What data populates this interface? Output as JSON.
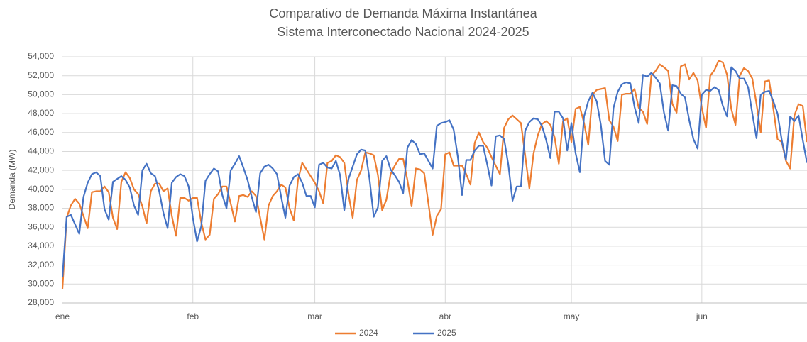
{
  "chart_data": {
    "type": "line",
    "title": "Comparativo de Demanda Máxima Instantánea",
    "subtitle": "Sistema Interconectado Nacional 2024-2025",
    "y_label": "Demanda (MW)",
    "categories": [
      "ene",
      null,
      null,
      null,
      null,
      null,
      null,
      null,
      null,
      null,
      null,
      null,
      null,
      null,
      null,
      null,
      null,
      null,
      null,
      null,
      null,
      null,
      null,
      null,
      null,
      null,
      null,
      null,
      null,
      null,
      null,
      "feb",
      null,
      null,
      null,
      null,
      null,
      null,
      null,
      null,
      null,
      null,
      null,
      null,
      null,
      null,
      null,
      null,
      null,
      null,
      null,
      null,
      null,
      null,
      null,
      null,
      null,
      null,
      null,
      null,
      "mar",
      null,
      null,
      null,
      null,
      null,
      null,
      null,
      null,
      null,
      null,
      null,
      null,
      null,
      null,
      null,
      null,
      null,
      null,
      null,
      null,
      null,
      null,
      null,
      null,
      null,
      null,
      null,
      null,
      null,
      null,
      "abr",
      null,
      null,
      null,
      null,
      null,
      null,
      null,
      null,
      null,
      null,
      null,
      null,
      null,
      null,
      null,
      null,
      null,
      null,
      null,
      null,
      null,
      null,
      null,
      null,
      null,
      null,
      null,
      null,
      null,
      "may",
      null,
      null,
      null,
      null,
      null,
      null,
      null,
      null,
      null,
      null,
      null,
      null,
      null,
      null,
      null,
      null,
      null,
      null,
      null,
      null,
      null,
      null,
      null,
      null,
      null,
      null,
      null,
      null,
      null,
      null,
      "jun",
      null,
      null,
      null,
      null,
      null,
      null,
      null,
      null,
      null,
      null,
      null,
      null,
      null,
      null,
      null,
      null,
      null,
      null,
      null,
      null,
      null,
      null,
      null,
      null,
      null
    ],
    "series": [
      {
        "name": "2024",
        "color": "#ed7d31",
        "values": [
          29500,
          37000,
          38300,
          39000,
          38500,
          37200,
          35900,
          39700,
          39800,
          39800,
          40300,
          39700,
          37000,
          35800,
          40800,
          41800,
          41200,
          40000,
          39500,
          38200,
          36400,
          39800,
          40600,
          40600,
          39800,
          40100,
          37200,
          35100,
          39100,
          39100,
          38800,
          39100,
          39100,
          36500,
          34700,
          35200,
          39000,
          39500,
          40300,
          40300,
          38500,
          36600,
          39300,
          39400,
          39200,
          39800,
          39300,
          37000,
          34700,
          38300,
          39300,
          39800,
          40500,
          40200,
          38000,
          36700,
          41000,
          42800,
          42100,
          41400,
          40700,
          39800,
          38500,
          42800,
          43000,
          43600,
          43400,
          42800,
          39500,
          37000,
          41000,
          42000,
          43900,
          43800,
          43600,
          41500,
          37800,
          38900,
          41600,
          42500,
          43200,
          43200,
          41000,
          38200,
          42200,
          42100,
          41700,
          38500,
          35200,
          37200,
          37900,
          43700,
          43900,
          42500,
          42500,
          42500,
          41600,
          40500,
          44900,
          46000,
          45000,
          44400,
          43400,
          42500,
          41600,
          46500,
          47400,
          47800,
          47400,
          47000,
          43600,
          40100,
          43800,
          45700,
          46900,
          47200,
          46800,
          45500,
          42700,
          47200,
          47500,
          45000,
          48500,
          48700,
          47000,
          44700,
          50000,
          50500,
          50600,
          50700,
          47300,
          46600,
          45100,
          50000,
          50100,
          50100,
          50600,
          48600,
          48200,
          46900,
          52000,
          52500,
          53200,
          52900,
          52500,
          49000,
          48100,
          53000,
          53200,
          51600,
          52300,
          51500,
          48600,
          46500,
          52000,
          52600,
          53600,
          53400,
          52100,
          48500,
          46800,
          52000,
          52800,
          52500,
          51700,
          49000,
          46000,
          51400,
          51500,
          48500,
          45300,
          45000,
          43000,
          42200,
          47800,
          49000,
          48800,
          45000
        ]
      },
      {
        "name": "2025",
        "color": "#4472c4",
        "values": [
          30700,
          37100,
          37300,
          36300,
          35300,
          39200,
          40700,
          41600,
          41800,
          41400,
          37900,
          36800,
          40800,
          41100,
          41400,
          41000,
          40200,
          38300,
          37300,
          42000,
          42700,
          41700,
          41400,
          39800,
          37500,
          35900,
          40700,
          41300,
          41600,
          41400,
          40300,
          37000,
          34500,
          36100,
          40900,
          41600,
          42200,
          41900,
          39400,
          38000,
          42000,
          42700,
          43500,
          42300,
          41000,
          39200,
          37600,
          41700,
          42400,
          42600,
          42200,
          41600,
          39200,
          37000,
          40400,
          41300,
          41600,
          40700,
          39300,
          39300,
          38100,
          42600,
          42800,
          42300,
          42200,
          43000,
          41500,
          37800,
          41100,
          42400,
          43700,
          44200,
          44100,
          41100,
          37100,
          38100,
          43000,
          43500,
          42100,
          41500,
          40800,
          39600,
          44400,
          45200,
          44800,
          43700,
          43800,
          43000,
          42200,
          46700,
          47000,
          47100,
          47300,
          46300,
          43400,
          39400,
          43100,
          43100,
          44100,
          44600,
          44600,
          42600,
          40400,
          45600,
          45700,
          45300,
          42600,
          38800,
          40300,
          40300,
          46200,
          47100,
          47500,
          47400,
          46700,
          45200,
          43300,
          48200,
          48200,
          47500,
          44100,
          47000,
          43800,
          41800,
          47700,
          49300,
          50200,
          49300,
          46800,
          43000,
          42600,
          48600,
          50300,
          51100,
          51300,
          51200,
          48700,
          47000,
          52100,
          51900,
          52300,
          51800,
          51200,
          48100,
          46200,
          51000,
          50900,
          50100,
          49700,
          47300,
          45300,
          44300,
          50000,
          50500,
          50400,
          50800,
          50500,
          48800,
          47700,
          52900,
          52500,
          51700,
          51700,
          50800,
          48000,
          45400,
          50000,
          50300,
          50400,
          49300,
          48000,
          45200,
          43100,
          47700,
          47200,
          47800,
          45200,
          42800
        ]
      }
    ],
    "ylim": [
      28000,
      54000
    ],
    "yticks": [
      {
        "value": 28000,
        "label": "28,000"
      },
      {
        "value": 30000,
        "label": "30,000"
      },
      {
        "value": 32000,
        "label": "32,000"
      },
      {
        "value": 34000,
        "label": "34,000"
      },
      {
        "value": 36000,
        "label": "36,000"
      },
      {
        "value": 38000,
        "label": "38,000"
      },
      {
        "value": 40000,
        "label": "40,000"
      },
      {
        "value": 42000,
        "label": "42,000"
      },
      {
        "value": 44000,
        "label": "44,000"
      },
      {
        "value": 46000,
        "label": "46,000"
      },
      {
        "value": 48000,
        "label": "48,000"
      },
      {
        "value": 50000,
        "label": "50,000"
      },
      {
        "value": 52000,
        "label": "52,000"
      },
      {
        "value": 54000,
        "label": "54,000"
      }
    ],
    "grid": true,
    "legend": "bottom"
  }
}
